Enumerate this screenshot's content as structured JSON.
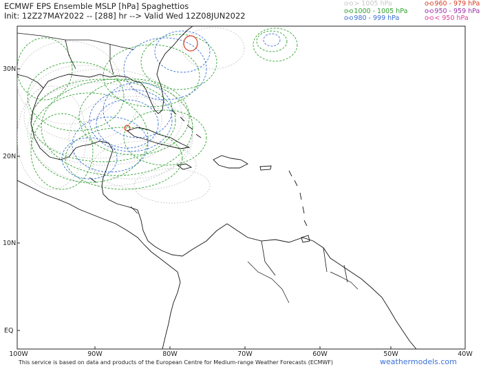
{
  "header": {
    "title_line1": "ECMWF EPS Ensemble MSLP [hPa] Spaghettios",
    "title_line2": "Init: 12Z27MAY2022 -- [288] hr --> Valid Wed 12Z08JUN2022"
  },
  "legend": [
    {
      "mark": "o-o",
      "label": "> 1005 hPa",
      "color": "#c8c8c8"
    },
    {
      "mark": "o-o",
      "label": "1000 - 1005 hPa",
      "color": "#2fa12f"
    },
    {
      "mark": "o-o",
      "label": "980 - 999 hPa",
      "color": "#3a6fd4"
    },
    {
      "mark": "o-o",
      "label": "960 - 979 hPa",
      "color": "#d93a1e"
    },
    {
      "mark": "o-o",
      "label": "950 - 959 hPa",
      "color": "#9b2fa8"
    },
    {
      "mark": "o-o",
      "label": "< 950 hPa",
      "color": "#e23a9c"
    }
  ],
  "axes": {
    "x_ticks": [
      "100W",
      "90W",
      "80W",
      "70W",
      "60W",
      "50W",
      "40W"
    ],
    "y_ticks": [
      "30N",
      "20N",
      "10N",
      "EQ"
    ]
  },
  "footer": {
    "credit": "This service is based on data and products of the European Centre for Medium-range Weather Forecasts (ECMWF)",
    "brand": "weathermodels.com"
  }
}
